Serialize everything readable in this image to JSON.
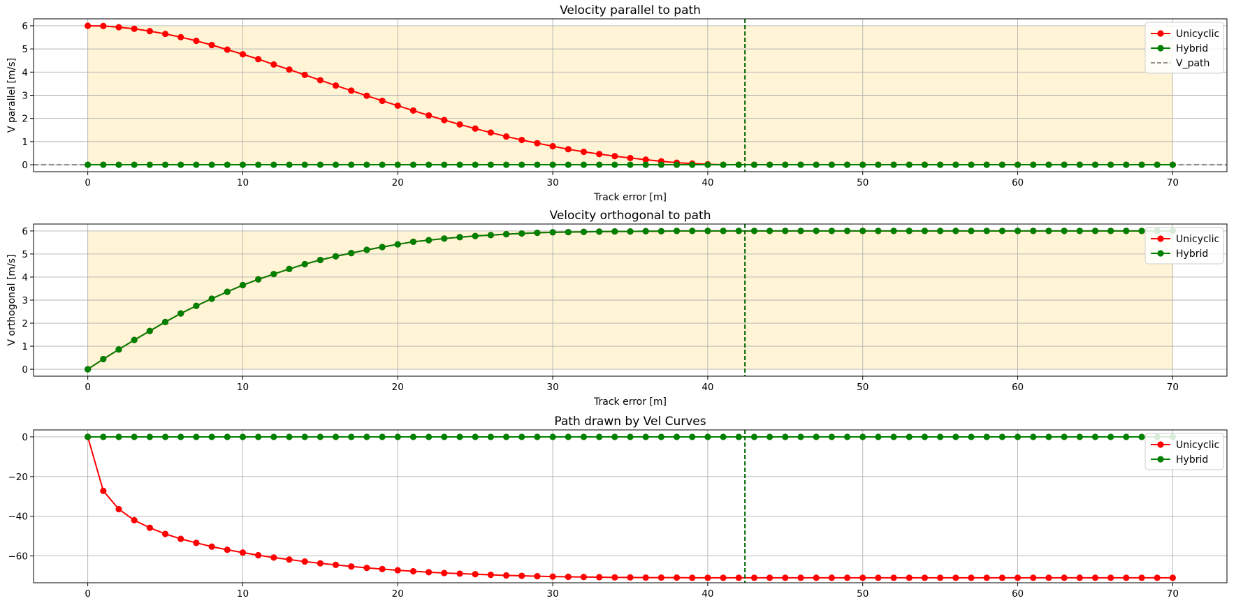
{
  "colors": {
    "unicyclic": "#ff0000",
    "hybrid": "#008000",
    "v_path": "#808080",
    "marker_line": "#006400",
    "shade": "#fff5d6",
    "grid": "#b0b0b0"
  },
  "chart_data": [
    {
      "type": "line",
      "title": "Velocity parallel to path",
      "xlabel": "Track error [m]",
      "ylabel": "V parallel [m/s]",
      "xlim": [
        -3.5,
        73.5
      ],
      "ylim": [
        -0.3,
        6.3
      ],
      "xticks": [
        0,
        10,
        20,
        30,
        40,
        50,
        60,
        70
      ],
      "yticks": [
        0,
        1,
        2,
        3,
        4,
        5,
        6
      ],
      "ytick_labels": [
        "0",
        "1",
        "2",
        "3",
        "4",
        "5",
        "6"
      ],
      "grid": true,
      "shaded_region": {
        "x": [
          0,
          70
        ],
        "y": [
          0,
          6
        ]
      },
      "vline_x": 42.4,
      "hline_y": 0,
      "legend_position": "top-right",
      "legend": [
        "Unicyclic",
        "Hybrid",
        "V_path"
      ],
      "series": [
        {
          "name": "Unicyclic",
          "color_key": "unicyclic",
          "x": [
            0,
            1,
            2,
            3,
            4,
            5,
            6,
            7,
            8,
            9,
            10,
            11,
            12,
            13,
            14,
            15,
            16,
            17,
            18,
            19,
            20,
            21,
            22,
            23,
            24,
            25,
            26,
            27,
            28,
            29,
            30,
            31,
            32,
            33,
            34,
            35,
            36,
            37,
            38,
            39,
            40,
            41,
            42,
            43,
            44,
            45,
            46,
            47,
            48,
            49,
            50,
            51,
            52,
            53,
            54,
            55,
            56,
            57,
            58,
            59,
            60,
            61,
            62,
            63,
            64,
            65,
            66,
            67,
            68,
            69,
            70
          ],
          "y": [
            6.0,
            5.99,
            5.94,
            5.87,
            5.77,
            5.65,
            5.51,
            5.35,
            5.17,
            4.97,
            4.77,
            4.56,
            4.33,
            4.11,
            3.88,
            3.65,
            3.42,
            3.2,
            2.98,
            2.76,
            2.55,
            2.34,
            2.13,
            1.93,
            1.74,
            1.56,
            1.39,
            1.22,
            1.07,
            0.93,
            0.8,
            0.67,
            0.56,
            0.46,
            0.37,
            0.29,
            0.22,
            0.15,
            0.09,
            0.05,
            0.02,
            0.0,
            0.0,
            0.0,
            0.0,
            0.0,
            0.0,
            0.0,
            0.0,
            0.0,
            0.0,
            0.0,
            0.0,
            0.0,
            0.0,
            0.0,
            0.0,
            0.0,
            0.0,
            0.0,
            0.0,
            0.0,
            0.0,
            0.0,
            0.0,
            0.0,
            0.0,
            0.0,
            0.0,
            0.0,
            0.0
          ]
        },
        {
          "name": "Hybrid",
          "color_key": "hybrid",
          "x": [
            0,
            1,
            2,
            3,
            4,
            5,
            6,
            7,
            8,
            9,
            10,
            11,
            12,
            13,
            14,
            15,
            16,
            17,
            18,
            19,
            20,
            21,
            22,
            23,
            24,
            25,
            26,
            27,
            28,
            29,
            30,
            31,
            32,
            33,
            34,
            35,
            36,
            37,
            38,
            39,
            40,
            41,
            42,
            43,
            44,
            45,
            46,
            47,
            48,
            49,
            50,
            51,
            52,
            53,
            54,
            55,
            56,
            57,
            58,
            59,
            60,
            61,
            62,
            63,
            64,
            65,
            66,
            67,
            68,
            69,
            70
          ],
          "y": [
            0,
            0,
            0,
            0,
            0,
            0,
            0,
            0,
            0,
            0,
            0,
            0,
            0,
            0,
            0,
            0,
            0,
            0,
            0,
            0,
            0,
            0,
            0,
            0,
            0,
            0,
            0,
            0,
            0,
            0,
            0,
            0,
            0,
            0,
            0,
            0,
            0,
            0,
            0,
            0,
            0,
            0,
            0,
            0,
            0,
            0,
            0,
            0,
            0,
            0,
            0,
            0,
            0,
            0,
            0,
            0,
            0,
            0,
            0,
            0,
            0,
            0,
            0,
            0,
            0,
            0,
            0,
            0,
            0,
            0,
            0
          ]
        }
      ]
    },
    {
      "type": "line",
      "title": "Velocity orthogonal to path",
      "xlabel": "Track error [m]",
      "ylabel": "V orthogonal [m/s]",
      "xlim": [
        -3.5,
        73.5
      ],
      "ylim": [
        -0.3,
        6.3
      ],
      "xticks": [
        0,
        10,
        20,
        30,
        40,
        50,
        60,
        70
      ],
      "yticks": [
        0,
        1,
        2,
        3,
        4,
        5,
        6
      ],
      "ytick_labels": [
        "0",
        "1",
        "2",
        "3",
        "4",
        "5",
        "6"
      ],
      "grid": true,
      "shaded_region": {
        "x": [
          0,
          70
        ],
        "y": [
          0,
          6
        ]
      },
      "vline_x": 42.4,
      "legend_position": "top-right",
      "legend": [
        "Unicyclic",
        "Hybrid"
      ],
      "series": [
        {
          "name": "Unicyclic",
          "color_key": "unicyclic",
          "x": [
            0,
            1,
            2,
            3,
            4,
            5,
            6,
            7,
            8,
            9,
            10,
            11,
            12,
            13,
            14,
            15,
            16,
            17,
            18,
            19,
            20,
            21,
            22,
            23,
            24,
            25,
            26,
            27,
            28,
            29,
            30,
            31,
            32,
            33,
            34,
            35,
            36,
            37,
            38,
            39,
            40,
            41,
            42,
            43,
            44,
            45,
            46,
            47,
            48,
            49,
            50,
            51,
            52,
            53,
            54,
            55,
            56,
            57,
            58,
            59,
            60,
            61,
            62,
            63,
            64,
            65,
            66,
            67,
            68,
            69,
            70
          ],
          "y": [
            0.0,
            0.44,
            0.86,
            1.27,
            1.66,
            2.05,
            2.42,
            2.75,
            3.06,
            3.36,
            3.65,
            3.9,
            4.13,
            4.35,
            4.56,
            4.74,
            4.9,
            5.04,
            5.18,
            5.3,
            5.42,
            5.53,
            5.6,
            5.67,
            5.73,
            5.78,
            5.82,
            5.86,
            5.89,
            5.92,
            5.94,
            5.95,
            5.96,
            5.97,
            5.98,
            5.98,
            5.99,
            5.99,
            6.0,
            6.0,
            6.0,
            6.0,
            6.0,
            6.0,
            6.0,
            6.0,
            6.0,
            6.0,
            6.0,
            6.0,
            6.0,
            6.0,
            6.0,
            6.0,
            6.0,
            6.0,
            6.0,
            6.0,
            6.0,
            6.0,
            6.0,
            6.0,
            6.0,
            6.0,
            6.0,
            6.0,
            6.0,
            6.0,
            6.0,
            6.0,
            6.0
          ]
        },
        {
          "name": "Hybrid",
          "color_key": "hybrid",
          "x": [
            0,
            1,
            2,
            3,
            4,
            5,
            6,
            7,
            8,
            9,
            10,
            11,
            12,
            13,
            14,
            15,
            16,
            17,
            18,
            19,
            20,
            21,
            22,
            23,
            24,
            25,
            26,
            27,
            28,
            29,
            30,
            31,
            32,
            33,
            34,
            35,
            36,
            37,
            38,
            39,
            40,
            41,
            42,
            43,
            44,
            45,
            46,
            47,
            48,
            49,
            50,
            51,
            52,
            53,
            54,
            55,
            56,
            57,
            58,
            59,
            60,
            61,
            62,
            63,
            64,
            65,
            66,
            67,
            68,
            69,
            70
          ],
          "y": [
            0.0,
            0.44,
            0.86,
            1.27,
            1.66,
            2.05,
            2.42,
            2.75,
            3.06,
            3.36,
            3.65,
            3.9,
            4.13,
            4.35,
            4.56,
            4.74,
            4.9,
            5.04,
            5.18,
            5.3,
            5.42,
            5.53,
            5.6,
            5.67,
            5.73,
            5.78,
            5.82,
            5.86,
            5.89,
            5.92,
            5.94,
            5.95,
            5.96,
            5.97,
            5.98,
            5.98,
            5.99,
            5.99,
            6.0,
            6.0,
            6.0,
            6.0,
            6.0,
            6.0,
            6.0,
            6.0,
            6.0,
            6.0,
            6.0,
            6.0,
            6.0,
            6.0,
            6.0,
            6.0,
            6.0,
            6.0,
            6.0,
            6.0,
            6.0,
            6.0,
            6.0,
            6.0,
            6.0,
            6.0,
            6.0,
            6.0,
            6.0,
            6.0,
            6.0,
            6.0,
            6.0
          ]
        }
      ]
    },
    {
      "type": "line",
      "title": "Path drawn by Vel Curves",
      "xlabel": "",
      "ylabel": "",
      "xlim": [
        -3.5,
        73.5
      ],
      "ylim": [
        -73.5,
        3.5
      ],
      "xticks": [
        0,
        10,
        20,
        30,
        40,
        50,
        60,
        70
      ],
      "yticks": [
        0,
        -20,
        -40,
        -60
      ],
      "ytick_labels": [
        "0",
        "−20",
        "−40",
        "−60"
      ],
      "grid": true,
      "vline_x": 42.4,
      "legend_position": "top-right",
      "legend": [
        "Unicyclic",
        "Hybrid"
      ],
      "series": [
        {
          "name": "Unicyclic",
          "color_key": "unicyclic",
          "x": [
            0,
            1,
            2,
            3,
            4,
            5,
            6,
            7,
            8,
            9,
            10,
            11,
            12,
            13,
            14,
            15,
            16,
            17,
            18,
            19,
            20,
            21,
            22,
            23,
            24,
            25,
            26,
            27,
            28,
            29,
            30,
            31,
            32,
            33,
            34,
            35,
            36,
            37,
            38,
            39,
            40,
            41,
            42,
            43,
            44,
            45,
            46,
            47,
            48,
            49,
            50,
            51,
            52,
            53,
            54,
            55,
            56,
            57,
            58,
            59,
            60,
            61,
            62,
            63,
            64,
            65,
            66,
            67,
            68,
            69,
            70
          ],
          "y": [
            0,
            -27.2,
            -36.4,
            -42.0,
            -45.8,
            -48.9,
            -51.4,
            -53.4,
            -55.3,
            -56.9,
            -58.3,
            -59.6,
            -60.8,
            -61.8,
            -62.8,
            -63.7,
            -64.5,
            -65.3,
            -66.0,
            -66.6,
            -67.2,
            -67.7,
            -68.2,
            -68.6,
            -68.9,
            -69.2,
            -69.5,
            -69.8,
            -70.0,
            -70.2,
            -70.4,
            -70.5,
            -70.6,
            -70.7,
            -70.8,
            -70.8,
            -70.9,
            -70.9,
            -70.9,
            -71.0,
            -71.0,
            -71.0,
            -71.0,
            -71.0,
            -71.0,
            -71.0,
            -71.0,
            -71.0,
            -71.0,
            -71.0,
            -71.0,
            -71.0,
            -71.0,
            -71.0,
            -71.0,
            -71.0,
            -71.0,
            -71.0,
            -71.0,
            -71.0,
            -71.0,
            -71.0,
            -71.0,
            -71.0,
            -71.0,
            -71.0,
            -71.0,
            -71.0,
            -71.0,
            -71.0,
            -71.0
          ]
        },
        {
          "name": "Hybrid",
          "color_key": "hybrid",
          "x": [
            0,
            1,
            2,
            3,
            4,
            5,
            6,
            7,
            8,
            9,
            10,
            11,
            12,
            13,
            14,
            15,
            16,
            17,
            18,
            19,
            20,
            21,
            22,
            23,
            24,
            25,
            26,
            27,
            28,
            29,
            30,
            31,
            32,
            33,
            34,
            35,
            36,
            37,
            38,
            39,
            40,
            41,
            42,
            43,
            44,
            45,
            46,
            47,
            48,
            49,
            50,
            51,
            52,
            53,
            54,
            55,
            56,
            57,
            58,
            59,
            60,
            61,
            62,
            63,
            64,
            65,
            66,
            67,
            68,
            69,
            70
          ],
          "y": [
            0,
            0,
            0,
            0,
            0,
            0,
            0,
            0,
            0,
            0,
            0,
            0,
            0,
            0,
            0,
            0,
            0,
            0,
            0,
            0,
            0,
            0,
            0,
            0,
            0,
            0,
            0,
            0,
            0,
            0,
            0,
            0,
            0,
            0,
            0,
            0,
            0,
            0,
            0,
            0,
            0,
            0,
            0,
            0,
            0,
            0,
            0,
            0,
            0,
            0,
            0,
            0,
            0,
            0,
            0,
            0,
            0,
            0,
            0,
            0,
            0,
            0,
            0,
            0,
            0,
            0,
            0,
            0,
            0,
            0,
            0
          ]
        }
      ]
    }
  ]
}
